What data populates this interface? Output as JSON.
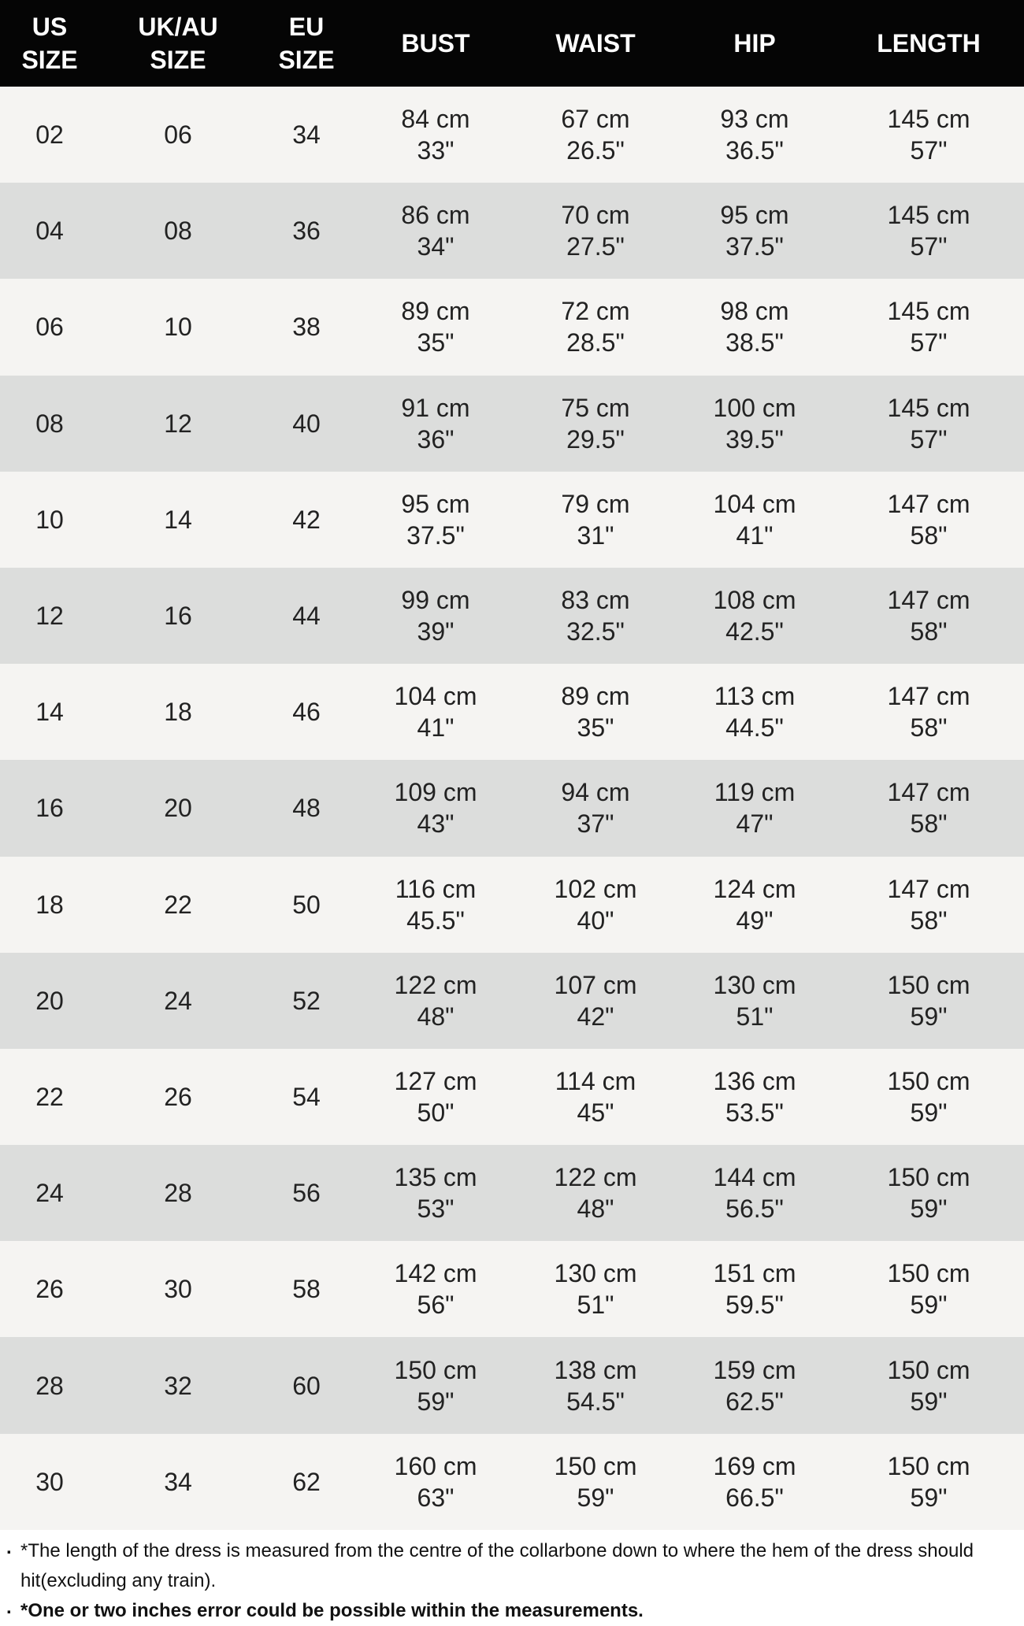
{
  "headers": [
    "US\nSIZE",
    "UK/AU\nSIZE",
    "EU\nSIZE",
    "BUST",
    "WAIST",
    "HIP",
    "LENGTH"
  ],
  "rows": [
    [
      "02",
      "06",
      "34",
      [
        "84 cm",
        "33\""
      ],
      [
        "67 cm",
        "26.5\""
      ],
      [
        "93 cm",
        "36.5\""
      ],
      [
        "145 cm",
        "57\""
      ]
    ],
    [
      "04",
      "08",
      "36",
      [
        "86 cm",
        "34\""
      ],
      [
        "70 cm",
        "27.5\""
      ],
      [
        "95 cm",
        "37.5\""
      ],
      [
        "145 cm",
        "57\""
      ]
    ],
    [
      "06",
      "10",
      "38",
      [
        "89 cm",
        "35\""
      ],
      [
        "72 cm",
        "28.5\""
      ],
      [
        "98 cm",
        "38.5\""
      ],
      [
        "145 cm",
        "57\""
      ]
    ],
    [
      "08",
      "12",
      "40",
      [
        "91 cm",
        "36\""
      ],
      [
        "75 cm",
        "29.5\""
      ],
      [
        "100 cm",
        "39.5\""
      ],
      [
        "145 cm",
        "57\""
      ]
    ],
    [
      "10",
      "14",
      "42",
      [
        "95 cm",
        "37.5\""
      ],
      [
        "79 cm",
        "31\""
      ],
      [
        "104 cm",
        "41\""
      ],
      [
        "147 cm",
        "58\""
      ]
    ],
    [
      "12",
      "16",
      "44",
      [
        "99 cm",
        "39\""
      ],
      [
        "83 cm",
        "32.5\""
      ],
      [
        "108 cm",
        "42.5\""
      ],
      [
        "147 cm",
        "58\""
      ]
    ],
    [
      "14",
      "18",
      "46",
      [
        "104 cm",
        "41\""
      ],
      [
        "89 cm",
        "35\""
      ],
      [
        "113 cm",
        "44.5\""
      ],
      [
        "147 cm",
        "58\""
      ]
    ],
    [
      "16",
      "20",
      "48",
      [
        "109 cm",
        "43\""
      ],
      [
        "94 cm",
        "37\""
      ],
      [
        "119 cm",
        "47\""
      ],
      [
        "147 cm",
        "58\""
      ]
    ],
    [
      "18",
      "22",
      "50",
      [
        "116 cm",
        "45.5\""
      ],
      [
        "102 cm",
        "40\""
      ],
      [
        "124 cm",
        "49\""
      ],
      [
        "147 cm",
        "58\""
      ]
    ],
    [
      "20",
      "24",
      "52",
      [
        "122 cm",
        "48\""
      ],
      [
        "107 cm",
        "42\""
      ],
      [
        "130 cm",
        "51\""
      ],
      [
        "150 cm",
        "59\""
      ]
    ],
    [
      "22",
      "26",
      "54",
      [
        "127 cm",
        "50\""
      ],
      [
        "114 cm",
        "45\""
      ],
      [
        "136 cm",
        "53.5\""
      ],
      [
        "150 cm",
        "59\""
      ]
    ],
    [
      "24",
      "28",
      "56",
      [
        "135 cm",
        "53\""
      ],
      [
        "122 cm",
        "48\""
      ],
      [
        "144 cm",
        "56.5\""
      ],
      [
        "150 cm",
        "59\""
      ]
    ],
    [
      "26",
      "30",
      "58",
      [
        "142 cm",
        "56\""
      ],
      [
        "130 cm",
        "51\""
      ],
      [
        "151 cm",
        "59.5\""
      ],
      [
        "150 cm",
        "59\""
      ]
    ],
    [
      "28",
      "32",
      "60",
      [
        "150 cm",
        "59\""
      ],
      [
        "138 cm",
        "54.5\""
      ],
      [
        "159 cm",
        "62.5\""
      ],
      [
        "150 cm",
        "59\""
      ]
    ],
    [
      "30",
      "34",
      "62",
      [
        "160 cm",
        "63\""
      ],
      [
        "150 cm",
        "59\""
      ],
      [
        "169 cm",
        "66.5\""
      ],
      [
        "150 cm",
        "59\""
      ]
    ]
  ],
  "notes": [
    "*The length of the dress is measured from the centre of the collarbone down to where the hem of the dress should hit(excluding any train).",
    "*One or two inches error could be possible within the measurements."
  ],
  "colors": {
    "header_bg": "#050505",
    "row_light": "#f5f4f2",
    "row_dark": "#dcdddc"
  }
}
